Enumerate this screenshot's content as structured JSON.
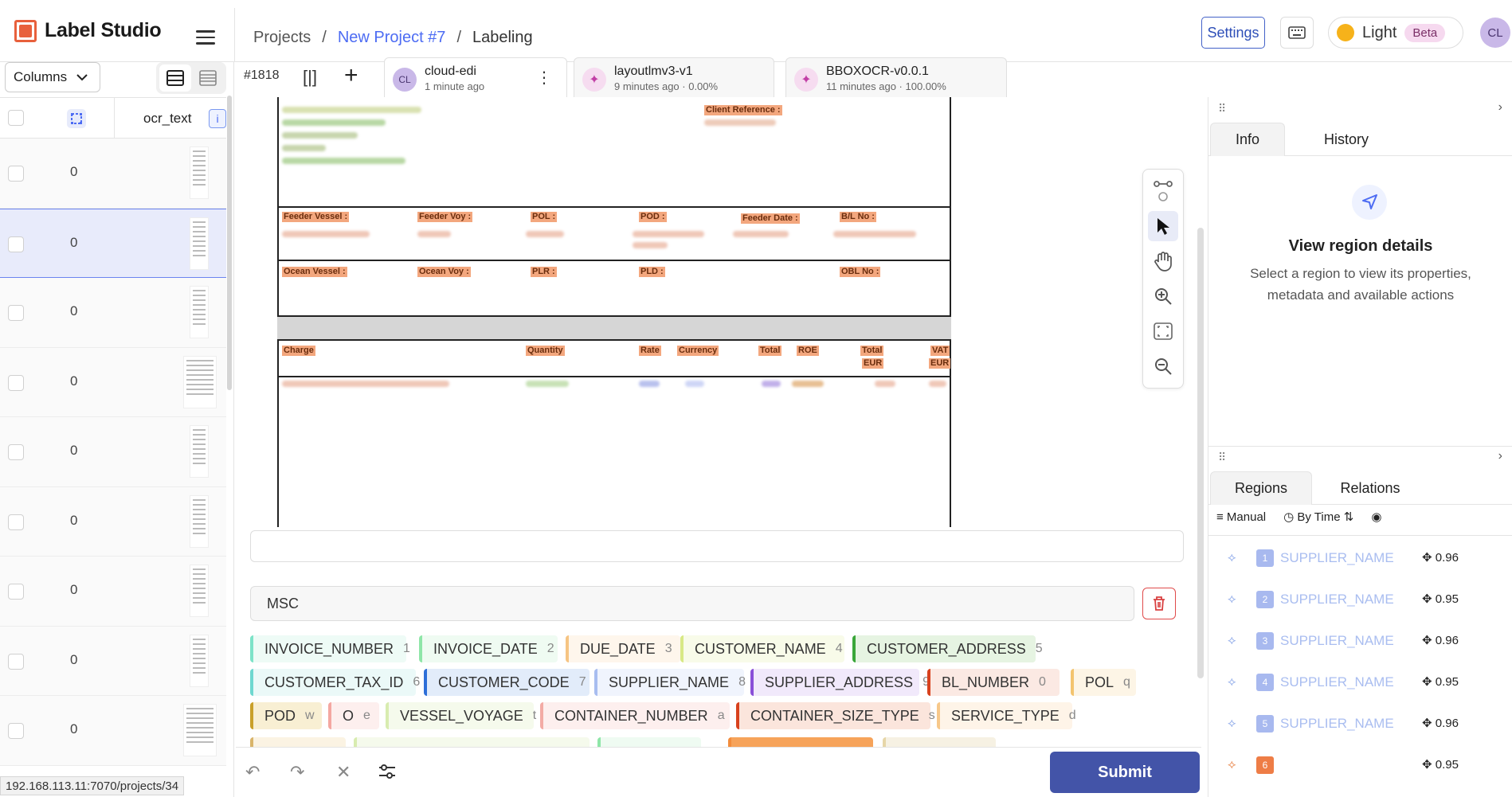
{
  "header": {
    "app_name": "Label Studio",
    "breadcrumb": [
      "Projects",
      "/",
      "New Project #7",
      "/",
      "Labeling"
    ],
    "settings_label": "Settings",
    "theme_label": "Light",
    "beta_label": "Beta",
    "user_initials": "CL"
  },
  "left_panel": {
    "columns_label": "Columns",
    "column_header": "ocr_text",
    "info_badge": "i",
    "rows": [
      {
        "value": "0",
        "selected": false
      },
      {
        "value": "0",
        "selected": true
      },
      {
        "value": "0",
        "selected": false
      },
      {
        "value": "0",
        "selected": false
      },
      {
        "value": "0",
        "selected": false
      },
      {
        "value": "0",
        "selected": false
      },
      {
        "value": "0",
        "selected": false
      },
      {
        "value": "0",
        "selected": false
      },
      {
        "value": "0",
        "selected": false
      }
    ],
    "status_url": "192.168.113.11:7070/projects/34"
  },
  "annotation_bar": {
    "task_id": "#1818",
    "tabs": [
      {
        "initials": "CL",
        "name": "cloud-edi",
        "meta": "1 minute ago",
        "active": true
      },
      {
        "initials": "✦",
        "name": "layoutlmv3-v1",
        "meta": "9 minutes ago · 0.00%",
        "active": false
      },
      {
        "initials": "✦",
        "name": "BBOXOCR-v0.0.1",
        "meta": "11 minutes ago · 100.00%",
        "active": false
      }
    ]
  },
  "document": {
    "labels": {
      "client_reference": "Client Reference :",
      "feeder_vessel": "Feeder Vessel :",
      "feeder_voy": "Feeder Voy :",
      "pol": "POL :",
      "pod": "POD :",
      "feeder_date": "Feeder Date :",
      "bl_no": "B/L No :",
      "ocean_vessel": "Ocean Vessel :",
      "ocean_voy": "Ocean Voy :",
      "plr": "PLR :",
      "pld": "PLD :",
      "obl_no": "OBL No :",
      "charge": "Charge",
      "quantity": "Quantity",
      "rate": "Rate",
      "currency": "Currency",
      "total": "Total",
      "roe": "ROE",
      "total_eur_1": "Total",
      "total_eur_2": "EUR",
      "vat_eur_1": "VAT",
      "vat_eur_2": "EUR"
    }
  },
  "text_field_value": "MSC",
  "labels": [
    {
      "name": "INVOICE_NUMBER",
      "key": "1",
      "color": "#7de3c8",
      "bg": "#eefbf6"
    },
    {
      "name": "INVOICE_DATE",
      "key": "2",
      "color": "#8fe6a8",
      "bg": "#effbf2"
    },
    {
      "name": "DUE_DATE",
      "key": "3",
      "color": "#f6c483",
      "bg": "#fef6ec"
    },
    {
      "name": "CUSTOMER_NAME",
      "key": "4",
      "color": "#d8e986",
      "bg": "#f8fbe9"
    },
    {
      "name": "CUSTOMER_ADDRESS",
      "key": "5",
      "color": "#3aa63a",
      "bg": "#e6f4e2"
    },
    {
      "name": "CUSTOMER_TAX_ID",
      "key": "6",
      "color": "#6fd8d0",
      "bg": "#ebf9f8"
    },
    {
      "name": "CUSTOMER_CODE",
      "key": "7",
      "color": "#2e6fd8",
      "bg": "#e2ecfa"
    },
    {
      "name": "SUPPLIER_NAME",
      "key": "8",
      "color": "#a8bdf0",
      "bg": "#f0f4fd"
    },
    {
      "name": "SUPPLIER_ADDRESS",
      "key": "9",
      "color": "#8a4fd8",
      "bg": "#f1e9fb"
    },
    {
      "name": "BL_NUMBER",
      "key": "0",
      "color": "#d8421e",
      "bg": "#fbe9e3"
    },
    {
      "name": "POL",
      "key": "q",
      "color": "#f3c46f",
      "bg": "#fdf5e6"
    },
    {
      "name": "POD",
      "key": "w",
      "color": "#c9a02a",
      "bg": "#f8efd3"
    },
    {
      "name": "O",
      "key": "e",
      "color": "#f4a7a1",
      "bg": "#fdefee"
    },
    {
      "name": "VESSEL_VOYAGE",
      "key": "t",
      "color": "#d8ecb0",
      "bg": "#f5faec"
    },
    {
      "name": "CONTAINER_NUMBER",
      "key": "a",
      "color": "#f3aba5",
      "bg": "#fdefee"
    },
    {
      "name": "CONTAINER_SIZE_TYPE",
      "key": "s",
      "color": "#d8421e",
      "bg": "#fbe5dc"
    },
    {
      "name": "SERVICE_TYPE",
      "key": "d",
      "color": "#f7c88a",
      "bg": "#fef4e8"
    }
  ],
  "right_panel": {
    "tabs_top": [
      "Info",
      "History"
    ],
    "details_title": "View region details",
    "details_desc": "Select a region to view its properties, metadata and available actions",
    "tabs_bottom": [
      "Regions",
      "Relations"
    ],
    "tools": [
      "Manual",
      "By Time"
    ],
    "regions": [
      {
        "idx": "1",
        "name": "SUPPLIER_NAME",
        "score": "0.96"
      },
      {
        "idx": "2",
        "name": "SUPPLIER_NAME",
        "score": "0.95"
      },
      {
        "idx": "3",
        "name": "SUPPLIER_NAME",
        "score": "0.96"
      },
      {
        "idx": "4",
        "name": "SUPPLIER_NAME",
        "score": "0.95"
      },
      {
        "idx": "5",
        "name": "SUPPLIER_NAME",
        "score": "0.96"
      },
      {
        "idx": "6",
        "name": "",
        "score": "0.95"
      }
    ]
  },
  "bottom": {
    "submit_label": "Submit"
  },
  "icons": {
    "undo": "undo-icon",
    "redo": "redo-icon",
    "reset": "close-icon",
    "settings": "sliders-icon"
  }
}
